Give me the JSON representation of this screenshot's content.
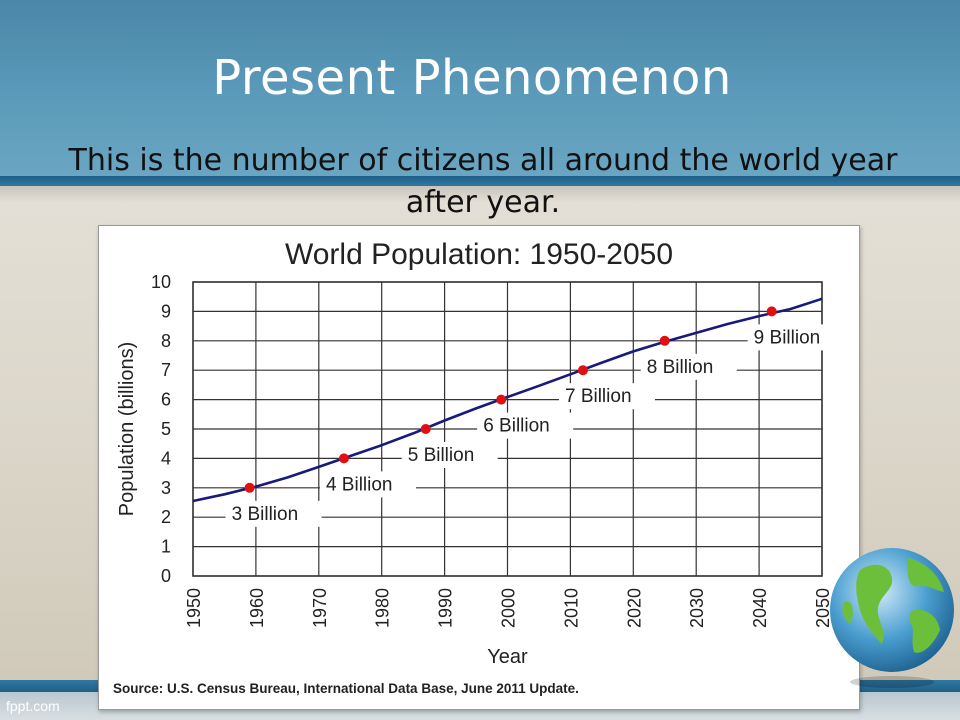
{
  "slide": {
    "title": "Present Phenomenon",
    "subtitle": "This is the number of citizens all around the world year after year.",
    "watermark": "fppt.com"
  },
  "colors": {
    "header": "#5b9aba",
    "stripe": "#2f78a3",
    "line": "#1a1a7a",
    "marker": "#e01010"
  },
  "icons": [
    "globe-icon"
  ],
  "chart_data": {
    "type": "line",
    "title": "World Population: 1950-2050",
    "xlabel": "Year",
    "ylabel": "Population  (billions)",
    "xlim": [
      1950,
      2050
    ],
    "ylim": [
      0,
      10
    ],
    "grid": true,
    "x_ticks": [
      "1950",
      "1960",
      "1970",
      "1980",
      "1990",
      "2000",
      "2010",
      "2020",
      "2030",
      "2040",
      "2050"
    ],
    "y_ticks": [
      "0",
      "1",
      "2",
      "3",
      "4",
      "5",
      "6",
      "7",
      "8",
      "9",
      "10"
    ],
    "series": [
      {
        "x": [
          1950,
          1955,
          1960,
          1965,
          1970,
          1975,
          1980,
          1985,
          1990,
          1995,
          2000,
          2005,
          2010,
          2015,
          2020,
          2025,
          2030,
          2035,
          2040,
          2045,
          2050
        ],
        "values": [
          2.55,
          2.78,
          3.04,
          3.35,
          3.71,
          4.08,
          4.45,
          4.85,
          5.29,
          5.7,
          6.09,
          6.47,
          6.86,
          7.26,
          7.64,
          7.97,
          8.27,
          8.57,
          8.84,
          9.08,
          9.43
        ]
      }
    ],
    "milestones": [
      {
        "year": 1959,
        "value": 3,
        "label": "3 Billion"
      },
      {
        "year": 1974,
        "value": 4,
        "label": "4 Billion"
      },
      {
        "year": 1987,
        "value": 5,
        "label": "5 Billion"
      },
      {
        "year": 1999,
        "value": 6,
        "label": "6 Billion"
      },
      {
        "year": 2012,
        "value": 7,
        "label": "7 Billion"
      },
      {
        "year": 2025,
        "value": 8,
        "label": "8 Billion"
      },
      {
        "year": 2042,
        "value": 9,
        "label": "9 Billion"
      }
    ],
    "source": "Source: U.S. Census Bureau, International Data Base, June 2011 Update."
  }
}
